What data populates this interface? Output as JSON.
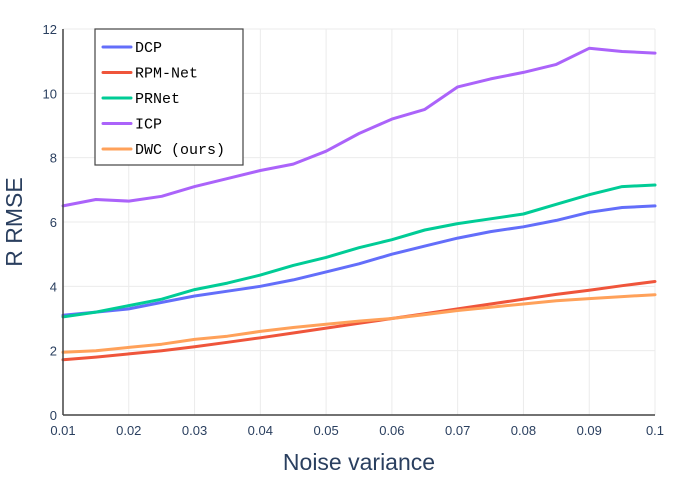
{
  "chart_data": {
    "type": "line",
    "xlabel": "Noise variance",
    "ylabel": "R RMSE",
    "xlim": [
      0.01,
      0.1
    ],
    "ylim": [
      0,
      12
    ],
    "x_ticks": [
      "0.01",
      "0.02",
      "0.03",
      "0.04",
      "0.05",
      "0.06",
      "0.07",
      "0.08",
      "0.09",
      "0.1"
    ],
    "x_tick_values": [
      0.01,
      0.02,
      0.03,
      0.04,
      0.05,
      0.06,
      0.07,
      0.08,
      0.09,
      0.1
    ],
    "y_ticks": [
      "0",
      "2",
      "4",
      "6",
      "8",
      "10",
      "12"
    ],
    "y_tick_values": [
      0,
      2,
      4,
      6,
      8,
      10,
      12
    ],
    "grid": true,
    "legend_position": "top-left",
    "x": [
      0.01,
      0.015,
      0.02,
      0.025,
      0.03,
      0.035,
      0.04,
      0.045,
      0.05,
      0.055,
      0.06,
      0.065,
      0.07,
      0.075,
      0.08,
      0.085,
      0.09,
      0.095,
      0.1
    ],
    "series": [
      {
        "name": "DCP",
        "color": "#636efa",
        "values": [
          3.1,
          3.2,
          3.3,
          3.5,
          3.7,
          3.85,
          4.0,
          4.2,
          4.45,
          4.7,
          5.0,
          5.25,
          5.5,
          5.7,
          5.85,
          6.05,
          6.3,
          6.45,
          6.5
        ]
      },
      {
        "name": "RPM-Net",
        "color": "#ef553b",
        "values": [
          1.72,
          1.8,
          1.9,
          2.0,
          2.12,
          2.26,
          2.4,
          2.55,
          2.7,
          2.85,
          3.0,
          3.15,
          3.3,
          3.45,
          3.6,
          3.75,
          3.88,
          4.02,
          4.15
        ]
      },
      {
        "name": "PRNet",
        "color": "#00cc96",
        "values": [
          3.05,
          3.2,
          3.4,
          3.6,
          3.9,
          4.1,
          4.35,
          4.65,
          4.9,
          5.2,
          5.45,
          5.75,
          5.95,
          6.1,
          6.25,
          6.55,
          6.85,
          7.1,
          7.15
        ]
      },
      {
        "name": "ICP",
        "color": "#ab63fa",
        "values": [
          6.5,
          6.7,
          6.65,
          6.8,
          7.1,
          7.35,
          7.6,
          7.8,
          8.2,
          8.75,
          9.2,
          9.5,
          10.2,
          10.45,
          10.65,
          10.9,
          11.4,
          11.3,
          11.25
        ]
      },
      {
        "name": "DWC (ours)",
        "color": "#ffa15a",
        "values": [
          1.95,
          2.0,
          2.1,
          2.2,
          2.35,
          2.45,
          2.6,
          2.72,
          2.82,
          2.92,
          3.0,
          3.12,
          3.25,
          3.35,
          3.45,
          3.55,
          3.62,
          3.68,
          3.74
        ]
      }
    ]
  }
}
